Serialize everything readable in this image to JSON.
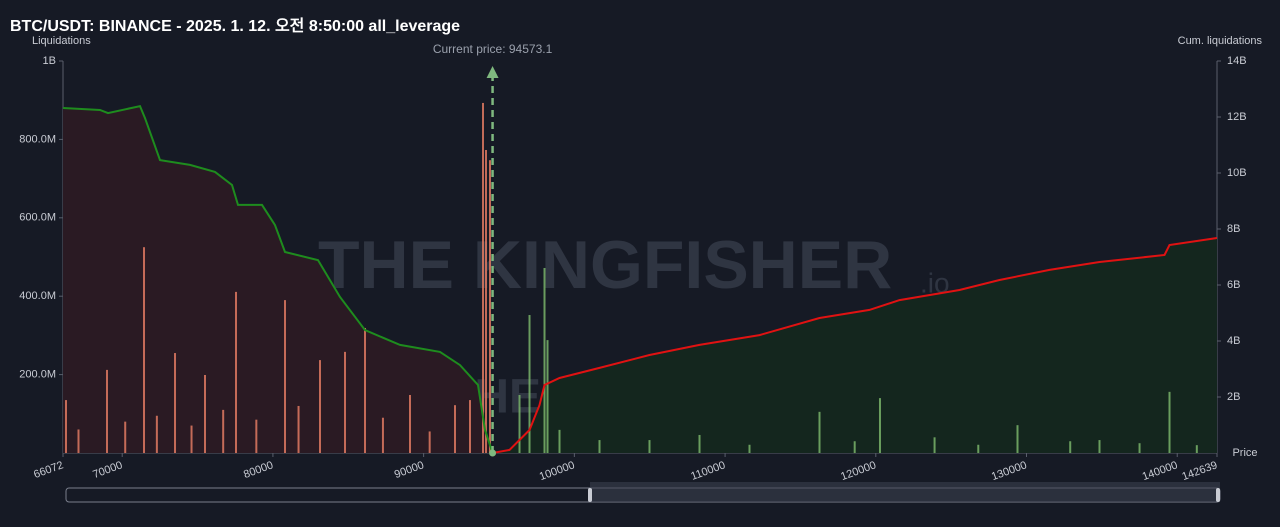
{
  "chart_data": {
    "type": "combo",
    "title": "BTC/USDT: BINANCE - 2025. 1. 12. 오전 8:50:00 all_leverage",
    "y_label": "Liquidations",
    "y2_label": "Cum. liquidations",
    "x_label": "Price",
    "watermark": "THE KINGFISHER",
    "watermark_suffix": ".io",
    "current_price": {
      "value": 94573.1,
      "label": "Current price: 94573.1"
    },
    "xlim": [
      66072,
      142639
    ],
    "xticks": [
      66072,
      70000,
      80000,
      90000,
      100000,
      110000,
      120000,
      130000,
      140000,
      142639
    ],
    "ylim": [
      0,
      1000000000
    ],
    "yticks": [
      {
        "value": 200000000,
        "label": "200.0M"
      },
      {
        "value": 400000000,
        "label": "400.0M"
      },
      {
        "value": 600000000,
        "label": "600.0M"
      },
      {
        "value": 800000000,
        "label": "800.0M"
      },
      {
        "value": 1000000000,
        "label": "1B"
      }
    ],
    "y2lim": [
      0,
      14000000000
    ],
    "y2ticks": [
      {
        "value": 2000000000,
        "label": "2B"
      },
      {
        "value": 4000000000,
        "label": "4B"
      },
      {
        "value": 6000000000,
        "label": "6B"
      },
      {
        "value": 8000000000,
        "label": "8B"
      },
      {
        "value": 10000000000,
        "label": "10B"
      },
      {
        "value": 12000000000,
        "label": "12B"
      },
      {
        "value": 14000000000,
        "label": "14B"
      }
    ],
    "grid": false,
    "series": [
      {
        "type": "area",
        "axis": "y2",
        "color": "#1e8c1e",
        "fill": "#2a1a23",
        "x": [
          66072,
          68527,
          69058,
          71181,
          71513,
          72508,
          74499,
          76157,
          77285,
          77684,
          79276,
          80138,
          80802,
          82991,
          84451,
          86110,
          88432,
          91086,
          92413,
          93607,
          94072,
          94573
        ],
        "values": [
          12320000000,
          12250000000,
          12140000000,
          12390000000,
          11960000000,
          10460000000,
          10290000000,
          10040000000,
          9570000000,
          8860000000,
          8860000000,
          8140000000,
          7180000000,
          6890000000,
          5570000000,
          4390000000,
          3860000000,
          3610000000,
          3140000000,
          2430000000,
          820000000,
          0
        ]
      },
      {
        "type": "area",
        "axis": "y2",
        "color": "#e01212",
        "fill": "#14261e",
        "x": [
          94573,
          95700,
          97025,
          97688,
          98020,
          99015,
          101669,
          104986,
          108304,
          112284,
          116265,
          119582,
          121573,
          125554,
          128208,
          131525,
          134843,
          139156,
          139488,
          142639
        ],
        "values": [
          0,
          110000000,
          820000000,
          1710000000,
          2430000000,
          2680000000,
          3040000000,
          3500000000,
          3860000000,
          4210000000,
          4820000000,
          5110000000,
          5460000000,
          5820000000,
          6180000000,
          6540000000,
          6820000000,
          7070000000,
          7430000000,
          7680000000
        ]
      },
      {
        "type": "bar",
        "axis": "y",
        "color": "#e07a62",
        "x": [
          66271,
          67100,
          68991,
          70200,
          71447,
          72300,
          73504,
          74600,
          75494,
          76700,
          77551,
          78900,
          80802,
          81700,
          83124,
          84783,
          86110,
          87300,
          89095,
          90400,
          92081,
          93076,
          93939,
          94138,
          94403
        ],
        "values": [
          135000000,
          60000000,
          212000000,
          80000000,
          525000000,
          95000000,
          255000000,
          70000000,
          199000000,
          110000000,
          411000000,
          85000000,
          390000000,
          120000000,
          237000000,
          258000000,
          319000000,
          90000000,
          148000000,
          55000000,
          122000000,
          135000000,
          893000000,
          773000000,
          747000000
        ]
      },
      {
        "type": "bar",
        "axis": "y",
        "color": "#79b46a",
        "x": [
          96362,
          97025,
          98020,
          98219,
          99015,
          101669,
          104986,
          108304,
          111621,
          116265,
          118600,
          120278,
          123900,
          126800,
          129402,
          132900,
          134843,
          137500,
          139488,
          141300
        ],
        "values": [
          148000000,
          352000000,
          472000000,
          288000000,
          59000000,
          33000000,
          33000000,
          46000000,
          21000000,
          105000000,
          30000000,
          140000000,
          40000000,
          21000000,
          71000000,
          30000000,
          33000000,
          25000000,
          156000000,
          20000000
        ]
      }
    ]
  }
}
